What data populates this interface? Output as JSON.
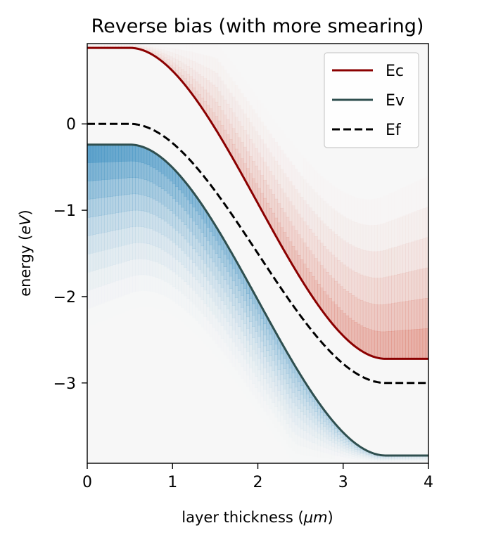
{
  "chart_data": {
    "type": "line",
    "title": "Reverse bias (with more smearing)",
    "xlabel": "layer thickness ($\\mu m$)",
    "xlabel_parts": {
      "prefix": "layer thickness (",
      "unit": "μm",
      "suffix": ")"
    },
    "ylabel": "energy ($eV$)",
    "ylabel_parts": {
      "prefix": "energy (",
      "unit": "eV",
      "suffix": ")"
    },
    "xlim": [
      0,
      4
    ],
    "ylim": [
      -3.93,
      0.93
    ],
    "xticks": [
      0,
      1,
      2,
      3,
      4
    ],
    "xtick_labels": [
      "0",
      "1",
      "2",
      "3",
      "4"
    ],
    "yticks": [
      0,
      -1,
      -2,
      -3
    ],
    "ytick_labels": [
      "0",
      "−1",
      "−2",
      "−3"
    ],
    "grid": false,
    "legend_position": "upper-right",
    "transition": {
      "x_start": 0.5,
      "x_end": 3.5
    },
    "series": [
      {
        "name": "Ec",
        "color": "#8b0000",
        "dash": "solid",
        "left": 0.88,
        "right": -2.72
      },
      {
        "name": "Ev",
        "color": "#2f4f4f",
        "dash": "solid",
        "left": -0.24,
        "right": -3.84
      },
      {
        "name": "Ef",
        "color": "#000000",
        "dash": "dashed",
        "left": 0.0,
        "right": -3.0
      }
    ],
    "shading": [
      {
        "band": "conduction",
        "color": "#d6604d",
        "direction": "above"
      },
      {
        "band": "valence",
        "color": "#4393c3",
        "direction": "below"
      }
    ],
    "background_color": "#f7f7f7"
  }
}
